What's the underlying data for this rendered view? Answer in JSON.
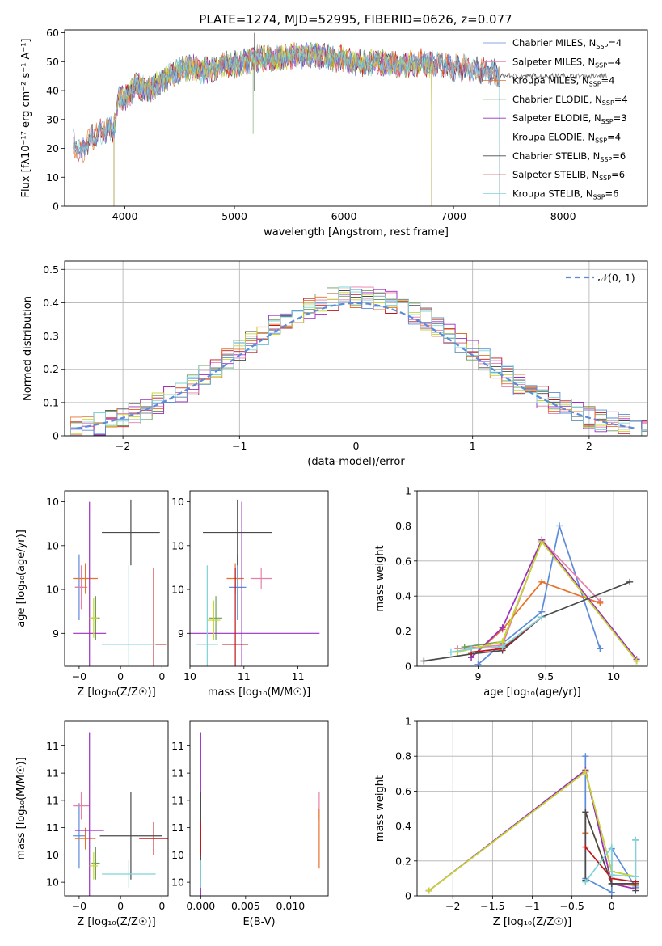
{
  "figure_title": "PLATE=1274, MJD=52995, FIBERID=0626, z=0.077",
  "colors": [
    "#5b8bd9",
    "#e87fa8",
    "#e8722a",
    "#6e9e5e",
    "#9b2fc1",
    "#c8d62d",
    "#4a4a4a",
    "#c0161b",
    "#7fd3d7"
  ],
  "chart_data": [
    {
      "id": "spectrum",
      "type": "line",
      "title": "PLATE=1274, MJD=52995, FIBERID=0626, z=0.077",
      "xlabel": "wavelength [Angstrom, rest frame]",
      "ylabel": "Flux [f$_\\lambda$10$^{-17}$ erg cm$^{-2}$ s$^{-1}$ A$^{-1}$]",
      "ylabel_display": "Flux [fλ10⁻¹⁷ erg cm⁻² s⁻¹ A⁻¹]",
      "xlim": [
        3450,
        8770
      ],
      "ylim": [
        0,
        61
      ],
      "xticks": [
        4000,
        5000,
        6000,
        7000,
        8000
      ],
      "yticks": [
        0,
        10,
        20,
        30,
        40,
        50,
        60
      ],
      "legend_position": "upper-right",
      "grid": false,
      "continuum": {
        "x": [
          3530,
          3600,
          3700,
          3800,
          3900,
          3950,
          4000,
          4100,
          4200,
          4300,
          4400,
          4500,
          4600,
          4700,
          4800,
          4900,
          5000,
          5100,
          5200,
          5300,
          5400,
          5500,
          5600,
          5700,
          5800,
          5900,
          6000,
          6100,
          6200,
          6300,
          6400,
          6500,
          6600,
          6700,
          6800,
          6900,
          7000,
          7100,
          7200,
          7300,
          7400
        ],
        "y": [
          22,
          18,
          24,
          26,
          27,
          38,
          37,
          42,
          40,
          42,
          45,
          47,
          48,
          47,
          47,
          49,
          49,
          50,
          51,
          51,
          51,
          52,
          52,
          52,
          52,
          51,
          51,
          50,
          49,
          50,
          49,
          49,
          49,
          50,
          49,
          49,
          48,
          48,
          47,
          47,
          46
        ]
      },
      "series": [
        {
          "name": "Chabrier MILES, N$_{SSP}$=4",
          "label": "Chabrier MILES, N",
          "nssp": "4",
          "xmin": 3530,
          "xmax": 7420
        },
        {
          "name": "Salpeter MILES, N$_{SSP}$=4",
          "label": "Salpeter MILES, N",
          "nssp": "4",
          "xmin": 3530,
          "xmax": 7420
        },
        {
          "name": "Kroupa MILES, N$_{SSP}$=4",
          "label": "Kroupa MILES, N",
          "nssp": "4",
          "xmin": 3530,
          "xmax": 7420
        },
        {
          "name": "Chabrier ELODIE, N$_{SSP}$=4",
          "label": "Chabrier ELODIE, N",
          "nssp": "4",
          "xmin": 3900,
          "xmax": 6800
        },
        {
          "name": "Salpeter ELODIE, N$_{SSP}$=3",
          "label": "Salpeter ELODIE, N",
          "nssp": "3",
          "xmin": 3900,
          "xmax": 6800
        },
        {
          "name": "Kroupa ELODIE, N$_{SSP}$=4",
          "label": "Kroupa ELODIE, N",
          "nssp": "4",
          "xmin": 3900,
          "xmax": 6800
        },
        {
          "name": "Chabrier STELIB, N$_{SSP}$=6",
          "label": "Chabrier STELIB, N",
          "nssp": "6",
          "xmin": 3530,
          "xmax": 8400
        },
        {
          "name": "Salpeter STELIB, N$_{SSP}$=6",
          "label": "Salpeter STELIB, N",
          "nssp": "6",
          "xmin": 3530,
          "xmax": 7420
        },
        {
          "name": "Kroupa STELIB, N$_{SSP}$=6",
          "label": "Kroupa STELIB, N",
          "nssp": "6",
          "xmin": 3530,
          "xmax": 7420
        }
      ],
      "nssp_sub": "SSP"
    },
    {
      "id": "residuals",
      "type": "histogram",
      "xlabel": "(data-model)/error",
      "ylabel": "Normed distribution",
      "xlim": [
        -2.5,
        2.5
      ],
      "ylim": [
        0,
        0.525
      ],
      "xticks": [
        -2,
        -1,
        0,
        1,
        2
      ],
      "yticks": [
        0.0,
        0.1,
        0.2,
        0.3,
        0.4,
        0.5
      ],
      "grid": true,
      "legend_position": "upper-right",
      "reference": {
        "name": "$\\mathcal{N}(0,1)$",
        "label": "𝒩(0, 1)",
        "color": "#5b8bd9",
        "style": "dashed"
      },
      "bin_width": 0.1
    },
    {
      "id": "age_vs_Z",
      "type": "errorbar",
      "xlabel": "Z [log$_{10}$(Z/Z$_\\odot$)]",
      "xlabel_display": "Z [log₁₀(Z/Z☉)]",
      "ylabel": "age  [log$_{10}$(age/yr)]",
      "ylabel_display": "age  [log₁₀(age/yr)]",
      "xlim": [
        -0.27,
        0.23
      ],
      "ylim": [
        9.25,
        10.05
      ],
      "xticks": [
        -0.2,
        0.0,
        0.2
      ],
      "yticks": [
        9.4,
        9.6,
        9.8,
        10.0
      ],
      "points": [
        {
          "x": -0.2,
          "y": 9.61,
          "xerr": 0.02,
          "yerr": 0.15,
          "c": 0
        },
        {
          "x": -0.19,
          "y": 9.61,
          "xerr": 0.03,
          "yerr": 0.1,
          "c": 1
        },
        {
          "x": -0.17,
          "y": 9.65,
          "xerr": 0.06,
          "yerr": 0.07,
          "c": 2
        },
        {
          "x": -0.12,
          "y": 9.47,
          "xerr": 0.02,
          "yerr": 0.1,
          "c": 3
        },
        {
          "x": -0.15,
          "y": 9.4,
          "xerr": 0.08,
          "yerr": 0.6,
          "c": 4
        },
        {
          "x": -0.13,
          "y": 9.47,
          "xerr": 0.02,
          "yerr": 0.09,
          "c": 5
        },
        {
          "x": 0.05,
          "y": 9.86,
          "xerr": 0.14,
          "yerr": 0.15,
          "c": 6
        },
        {
          "x": 0.16,
          "y": 9.35,
          "xerr": 0.06,
          "yerr": 0.35,
          "c": 7
        },
        {
          "x": 0.04,
          "y": 9.35,
          "xerr": 0.13,
          "yerr": 0.36,
          "c": 8
        }
      ]
    },
    {
      "id": "age_vs_mass",
      "type": "errorbar",
      "xlabel": "mass [log$_{10}$(M/M$_\\odot$)]",
      "xlabel_display": "mass [log₁₀(M/M☉)]",
      "xlim": [
        10.25,
        10.89
      ],
      "ylim": [
        9.25,
        10.05
      ],
      "xticks": [
        10.25,
        10.5,
        10.75
      ],
      "yticks": [
        9.4,
        9.6,
        9.8,
        10.0
      ],
      "points": [
        {
          "x": 10.47,
          "y": 9.61,
          "xerr": 0.04,
          "yerr": 0.15,
          "c": 0
        },
        {
          "x": 10.58,
          "y": 9.65,
          "xerr": 0.05,
          "yerr": 0.05,
          "c": 1
        },
        {
          "x": 10.46,
          "y": 9.65,
          "xerr": 0.04,
          "yerr": 0.07,
          "c": 2
        },
        {
          "x": 10.37,
          "y": 9.47,
          "xerr": 0.03,
          "yerr": 0.1,
          "c": 3
        },
        {
          "x": 10.49,
          "y": 9.4,
          "xerr": 0.36,
          "yerr": 0.6,
          "c": 4
        },
        {
          "x": 10.36,
          "y": 9.46,
          "xerr": 0.03,
          "yerr": 0.09,
          "c": 5
        },
        {
          "x": 10.47,
          "y": 9.86,
          "xerr": 0.16,
          "yerr": 0.15,
          "c": 6
        },
        {
          "x": 10.46,
          "y": 9.35,
          "xerr": 0.06,
          "yerr": 0.35,
          "c": 7
        },
        {
          "x": 10.33,
          "y": 9.35,
          "xerr": 0.05,
          "yerr": 0.36,
          "c": 8
        }
      ]
    },
    {
      "id": "mw_vs_age",
      "type": "line",
      "xlabel": "age  [log$_{10}$(age/yr)]",
      "xlabel_display": "age  [log₁₀(age/yr)]",
      "ylabel": "mass weight",
      "xlim": [
        8.55,
        10.25
      ],
      "ylim": [
        0,
        1
      ],
      "xticks": [
        9.0,
        9.5,
        10.0
      ],
      "yticks": [
        0.0,
        0.2,
        0.4,
        0.6,
        0.8,
        1.0
      ],
      "grid": true,
      "series": [
        {
          "c": 0,
          "x": [
            9.0,
            9.18,
            9.47,
            9.6,
            9.9
          ],
          "y": [
            0.01,
            0.13,
            0.31,
            0.8,
            0.1
          ]
        },
        {
          "c": 1,
          "x": [
            8.85,
            9.18,
            9.47,
            9.9
          ],
          "y": [
            0.1,
            0.12,
            0.72,
            0.37
          ]
        },
        {
          "c": 2,
          "x": [
            8.95,
            9.18,
            9.47,
            9.9
          ],
          "y": [
            0.05,
            0.21,
            0.48,
            0.36
          ]
        },
        {
          "c": 3,
          "x": [
            8.9,
            9.18,
            9.47,
            10.17
          ],
          "y": [
            0.11,
            0.14,
            0.71,
            0.03
          ]
        },
        {
          "c": 4,
          "x": [
            8.95,
            9.18,
            9.47,
            10.17
          ],
          "y": [
            0.05,
            0.22,
            0.72,
            0.04
          ]
        },
        {
          "c": 5,
          "x": [
            8.85,
            9.18,
            9.47,
            10.17
          ],
          "y": [
            0.08,
            0.14,
            0.71,
            0.03
          ]
        },
        {
          "c": 6,
          "x": [
            8.6,
            8.95,
            9.18,
            9.47,
            10.12
          ],
          "y": [
            0.03,
            0.07,
            0.09,
            0.28,
            0.48
          ]
        },
        {
          "c": 7,
          "x": [
            8.95,
            9.18,
            9.47
          ],
          "y": [
            0.08,
            0.1,
            0.28
          ]
        },
        {
          "c": 8,
          "x": [
            8.8,
            8.95,
            9.18,
            9.47
          ],
          "y": [
            0.08,
            0.1,
            0.11,
            0.28
          ]
        }
      ]
    },
    {
      "id": "mass_vs_Z",
      "type": "errorbar",
      "xlabel": "Z [log$_{10}$(Z/Z$_\\odot$)]",
      "xlabel_display": "Z [log₁₀(Z/Z☉)]",
      "ylabel": "mass [log$_{10}$(M/M$_\\odot$)]",
      "ylabel_display": "mass [log₁₀(M/M☉)]",
      "xlim": [
        -0.27,
        0.23
      ],
      "ylim": [
        10.25,
        10.89
      ],
      "xticks": [
        -0.2,
        0.0,
        0.2
      ],
      "yticks": [
        10.3,
        10.4,
        10.5,
        10.6,
        10.7,
        10.8
      ],
      "points": [
        {
          "x": -0.2,
          "y": 10.47,
          "xerr": 0.03,
          "yerr": 0.12,
          "c": 0
        },
        {
          "x": -0.19,
          "y": 10.58,
          "xerr": 0.04,
          "yerr": 0.05,
          "c": 1
        },
        {
          "x": -0.17,
          "y": 10.46,
          "xerr": 0.05,
          "yerr": 0.04,
          "c": 2
        },
        {
          "x": -0.12,
          "y": 10.37,
          "xerr": 0.02,
          "yerr": 0.06,
          "c": 3
        },
        {
          "x": -0.15,
          "y": 10.49,
          "xerr": 0.07,
          "yerr": 0.36,
          "c": 4
        },
        {
          "x": -0.13,
          "y": 10.36,
          "xerr": 0.02,
          "yerr": 0.05,
          "c": 5
        },
        {
          "x": 0.05,
          "y": 10.47,
          "xerr": 0.15,
          "yerr": 0.16,
          "c": 6
        },
        {
          "x": 0.16,
          "y": 10.46,
          "xerr": 0.07,
          "yerr": 0.06,
          "c": 7
        },
        {
          "x": 0.04,
          "y": 10.33,
          "xerr": 0.13,
          "yerr": 0.05,
          "c": 8
        }
      ]
    },
    {
      "id": "mass_vs_EBV",
      "type": "errorbar",
      "xlabel": "E(B-V)",
      "xlim": [
        -0.0012,
        0.0142
      ],
      "ylim": [
        10.25,
        10.89
      ],
      "xticks": [
        0.0,
        0.005,
        0.01
      ],
      "yticklabels": [
        "0.000",
        "0.005",
        "0.010"
      ],
      "yticks": [
        10.3,
        10.4,
        10.5,
        10.6,
        10.7,
        10.8
      ],
      "points": [
        {
          "x": 0.0,
          "y": 10.47,
          "yerr": 0.12,
          "c": 0
        },
        {
          "x": 0.0132,
          "y": 10.58,
          "yerr": 0.05,
          "c": 1
        },
        {
          "x": 0.0132,
          "y": 10.46,
          "yerr": 0.11,
          "c": 2
        },
        {
          "x": 0.0,
          "y": 10.37,
          "yerr": 0.06,
          "c": 3
        },
        {
          "x": 0.0,
          "y": 10.49,
          "yerr": 0.36,
          "c": 4
        },
        {
          "x": 0.0,
          "y": 10.36,
          "yerr": 0.05,
          "c": 5
        },
        {
          "x": 0.0,
          "y": 10.47,
          "yerr": 0.16,
          "c": 6
        },
        {
          "x": 0.0,
          "y": 10.46,
          "yerr": 0.06,
          "c": 7
        },
        {
          "x": 0.0,
          "y": 10.33,
          "yerr": 0.05,
          "c": 8
        }
      ]
    },
    {
      "id": "mw_vs_Z",
      "type": "line",
      "xlabel": "Z [log$_{10}$(Z/Z$_\\odot$)]",
      "xlabel_display": "Z [log₁₀(Z/Z☉)]",
      "ylabel": "mass weight",
      "xlim": [
        -2.45,
        0.45
      ],
      "ylim": [
        0,
        1
      ],
      "xticks": [
        -2.0,
        -1.5,
        -1.0,
        -0.5,
        0.0
      ],
      "yticks": [
        0.0,
        0.2,
        0.4,
        0.6,
        0.8,
        1.0
      ],
      "grid": true,
      "series": [
        {
          "c": 0,
          "x": [
            -0.33,
            -0.33,
            0.0,
            0.0,
            0.3,
            0.3
          ],
          "y": [
            0.8,
            0.1,
            0.02,
            0.27,
            0.05,
            0.32
          ]
        },
        {
          "c": 1,
          "x": [
            -0.33,
            0.0,
            0.3
          ],
          "y": [
            0.72,
            0.07,
            0.04
          ]
        },
        {
          "c": 2,
          "x": [
            -0.33,
            -0.33,
            0.0,
            0.3
          ],
          "y": [
            0.36,
            0.48,
            0.07,
            0.06
          ]
        },
        {
          "c": 3,
          "x": [
            -2.3,
            -0.33,
            0.0,
            0.3
          ],
          "y": [
            0.03,
            0.71,
            0.14,
            0.11
          ]
        },
        {
          "c": 4,
          "x": [
            -2.3,
            -0.33,
            0.0,
            0.3
          ],
          "y": [
            0.03,
            0.72,
            0.07,
            0.04
          ]
        },
        {
          "c": 5,
          "x": [
            -2.3,
            -0.33,
            0.0,
            0.3
          ],
          "y": [
            0.03,
            0.71,
            0.14,
            0.11
          ]
        },
        {
          "c": 6,
          "x": [
            -0.33,
            -0.33,
            0.0,
            0.3,
            0.3
          ],
          "y": [
            0.09,
            0.48,
            0.07,
            0.07,
            0.03
          ]
        },
        {
          "c": 7,
          "x": [
            -0.33,
            0.0,
            0.3
          ],
          "y": [
            0.28,
            0.1,
            0.08
          ]
        },
        {
          "c": 8,
          "x": [
            -0.33,
            0.0,
            0.0,
            0.3,
            0.3
          ],
          "y": [
            0.08,
            0.28,
            0.12,
            0.11,
            0.32
          ]
        }
      ]
    }
  ]
}
